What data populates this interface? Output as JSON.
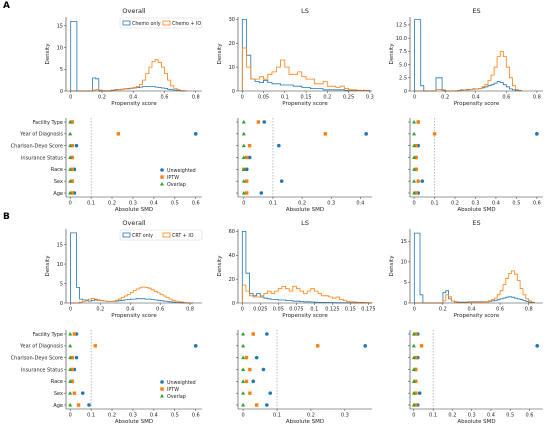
{
  "panels": [
    {
      "letter": "A",
      "hist_legend": [
        "Chemo only",
        "Chemo + IO"
      ]
    },
    {
      "letter": "B",
      "hist_legend": [
        "CRT only",
        "CRT + IO"
      ]
    }
  ],
  "columns": [
    "Overall",
    "LS",
    "ES"
  ],
  "labels": {
    "density": "Density",
    "propensity": "Propensity score",
    "smd": "Absolute SMD"
  },
  "smd_legend": [
    "Unweighted",
    "IPTW",
    "Overlap"
  ],
  "covariates": [
    "Facility Type",
    "Year of Diagnosis",
    "Charlson-Deyo Score",
    "Insurance Status",
    "Race",
    "Sex",
    "Age"
  ],
  "colors": {
    "blue": "#1f77b4",
    "orange": "#ff7f0e",
    "green": "#2ca02c"
  },
  "chart_data": [
    {
      "type": "histogram",
      "panel": "A",
      "column": "Overall",
      "x_ticks": [
        0.0,
        0.2,
        0.4,
        0.6,
        0.8
      ],
      "xlim": [
        -0.03,
        0.84
      ],
      "y_ticks": [
        0,
        5,
        10,
        15
      ],
      "ylim": [
        0,
        17
      ],
      "bin_start": 0.0,
      "bin_width": 0.02,
      "series": [
        {
          "name": "Chemo only",
          "color": "blue",
          "values": [
            16,
            16,
            0,
            0,
            0,
            0,
            0,
            3,
            2.8,
            0,
            0,
            0,
            0,
            0.2,
            0.3,
            0.3,
            0.4,
            0.5,
            0.5,
            0.6,
            0.7,
            0.8,
            0.9,
            1.0,
            1.0,
            1.0,
            1.0,
            0.9,
            0.8,
            0.7,
            0.6,
            0.4,
            0.3,
            0.2,
            0.1,
            0.05,
            0.02
          ]
        },
        {
          "name": "Chemo + IO",
          "color": "orange",
          "values": [
            0,
            0,
            0,
            0,
            0,
            0,
            0,
            0.2,
            0.3,
            0.2,
            0.1,
            0.1,
            0.1,
            0.1,
            0.2,
            0.3,
            0.4,
            0.5,
            0.6,
            0.7,
            0.8,
            1.0,
            1.5,
            2.5,
            4.0,
            5.5,
            6.8,
            7.2,
            6.6,
            5.5,
            4.0,
            2.5,
            1.2,
            0.6,
            0.3,
            0.1,
            0.05
          ]
        }
      ]
    },
    {
      "type": "histogram",
      "panel": "A",
      "column": "LS",
      "x_ticks": [
        0.0,
        0.05,
        0.1,
        0.15,
        0.2,
        0.25,
        0.3
      ],
      "xlim": [
        -0.01,
        0.305
      ],
      "y_ticks": [
        0,
        10,
        20,
        30
      ],
      "ylim": [
        0,
        31
      ],
      "bin_start": 0.0,
      "bin_width": 0.01,
      "series": [
        {
          "name": "Chemo only",
          "color": "blue",
          "values": [
            30,
            15,
            5,
            4,
            3.5,
            4.5,
            3.5,
            3,
            3,
            2.5,
            2.5,
            2.5,
            2,
            2,
            1.5,
            1.5,
            1,
            1,
            1,
            0.5,
            0.5,
            0.5,
            0.5,
            0.5,
            0.3,
            0.3,
            0.3,
            0.2,
            0.2,
            0.2
          ]
        },
        {
          "name": "Chemo + IO",
          "color": "orange",
          "values": [
            18,
            10,
            5,
            5,
            6,
            5,
            7,
            8,
            10,
            13,
            10,
            7,
            7,
            8,
            6,
            5,
            5,
            3,
            3,
            4,
            2,
            2,
            1.5,
            2,
            1,
            0.5,
            0.5,
            0.3,
            0.3,
            0.2
          ]
        }
      ]
    },
    {
      "type": "histogram",
      "panel": "A",
      "column": "ES",
      "x_ticks": [
        0.0,
        0.2,
        0.4,
        0.6,
        0.8
      ],
      "xlim": [
        -0.03,
        0.84
      ],
      "y_ticks": [
        0,
        2.5,
        5.0,
        7.5,
        10.0,
        12.5
      ],
      "ylim": [
        0,
        14
      ],
      "bin_start": 0.0,
      "bin_width": 0.02,
      "series": [
        {
          "name": "Chemo only",
          "color": "blue",
          "values": [
            13.5,
            13.5,
            1,
            0,
            0,
            0,
            0,
            2.5,
            2.5,
            0.2,
            0,
            0,
            0,
            0,
            0.1,
            0.2,
            0.2,
            0.3,
            0.3,
            0.4,
            0.4,
            0.5,
            0.6,
            0.8,
            1.0,
            1.2,
            1.5,
            1.8,
            1.6,
            1.2,
            0.8,
            0.4,
            0.2,
            0.1,
            0.05
          ]
        },
        {
          "name": "Chemo + IO",
          "color": "orange",
          "values": [
            0,
            0,
            0,
            0,
            0,
            0,
            0,
            0.3,
            0.3,
            0.1,
            0,
            0,
            0,
            0,
            0.1,
            0.1,
            0.2,
            0.2,
            0.3,
            0.3,
            0.4,
            0.5,
            0.8,
            1.2,
            2.0,
            3.0,
            4.5,
            6.5,
            7.5,
            6.5,
            4.5,
            2.5,
            1.0,
            0.3,
            0.1
          ]
        }
      ]
    },
    {
      "type": "scatter",
      "panel": "A",
      "column": "Overall",
      "x_ticks": [
        0.0,
        0.1,
        0.2,
        0.3,
        0.4,
        0.5,
        0.6
      ],
      "xlim": [
        -0.02,
        0.63
      ],
      "threshold": 0.1,
      "series": [
        {
          "name": "Unweighted",
          "marker": "circle",
          "color": "blue",
          "values": [
            0.01,
            0.6,
            0.03,
            0.01,
            0.02,
            0.01,
            0.02
          ]
        },
        {
          "name": "IPTW",
          "marker": "square",
          "color": "orange",
          "values": [
            0.01,
            0.23,
            0.01,
            0.01,
            0.01,
            0.01,
            0.01
          ]
        },
        {
          "name": "Overlap",
          "marker": "triangle",
          "color": "green",
          "values": [
            0.0,
            0.0,
            0.0,
            0.0,
            0.0,
            0.0,
            0.0
          ]
        }
      ]
    },
    {
      "type": "scatter",
      "panel": "A",
      "column": "LS",
      "x_ticks": [
        0.0,
        0.1,
        0.2,
        0.3,
        0.4
      ],
      "xlim": [
        -0.02,
        0.44
      ],
      "threshold": 0.1,
      "series": [
        {
          "name": "Unweighted",
          "marker": "circle",
          "color": "blue",
          "values": [
            0.07,
            0.42,
            0.12,
            0.02,
            0.01,
            0.13,
            0.06
          ]
        },
        {
          "name": "IPTW",
          "marker": "square",
          "color": "orange",
          "values": [
            0.05,
            0.28,
            0.02,
            0.01,
            0.0,
            0.01,
            0.01
          ]
        },
        {
          "name": "Overlap",
          "marker": "triangle",
          "color": "green",
          "values": [
            0.0,
            0.0,
            0.0,
            0.0,
            0.0,
            0.0,
            0.0
          ]
        }
      ]
    },
    {
      "type": "scatter",
      "panel": "A",
      "column": "ES",
      "x_ticks": [
        0.0,
        0.1,
        0.2,
        0.3,
        0.4,
        0.5,
        0.6
      ],
      "xlim": [
        -0.02,
        0.63
      ],
      "threshold": 0.1,
      "series": [
        {
          "name": "Unweighted",
          "marker": "circle",
          "color": "blue",
          "values": [
            0.02,
            0.6,
            0.02,
            0.01,
            0.01,
            0.04,
            0.02
          ]
        },
        {
          "name": "IPTW",
          "marker": "square",
          "color": "orange",
          "values": [
            0.02,
            0.1,
            0.01,
            0.01,
            0.01,
            0.02,
            0.01
          ]
        },
        {
          "name": "Overlap",
          "marker": "triangle",
          "color": "green",
          "values": [
            0.0,
            0.0,
            0.0,
            0.0,
            0.0,
            0.0,
            0.0
          ]
        }
      ]
    },
    {
      "type": "histogram",
      "panel": "B",
      "column": "Overall",
      "x_ticks": [
        0.0,
        0.2,
        0.4,
        0.6,
        0.8
      ],
      "xlim": [
        -0.03,
        0.88
      ],
      "y_ticks": [
        0,
        5,
        10,
        15
      ],
      "ylim": [
        0,
        19
      ],
      "bin_start": 0.0,
      "bin_width": 0.02,
      "series": [
        {
          "name": "CRT only",
          "color": "blue",
          "values": [
            18,
            18,
            4,
            1,
            0.8,
            0.6,
            0.5,
            0.7,
            0.8,
            0.7,
            0.6,
            0.5,
            0.4,
            0.4,
            0.4,
            0.5,
            0.6,
            0.7,
            0.8,
            0.9,
            1.0,
            1.0,
            1.1,
            1.1,
            1.1,
            1.0,
            1.0,
            0.9,
            0.8,
            0.7,
            0.6,
            0.5,
            0.4,
            0.3,
            0.2,
            0.1,
            0.1,
            0.05,
            0.02,
            0.01,
            0.01
          ]
        },
        {
          "name": "CRT + IO",
          "color": "orange",
          "values": [
            0,
            0,
            0,
            0.2,
            0.4,
            0.8,
            1.0,
            1.2,
            1.0,
            0.8,
            0.6,
            0.5,
            0.4,
            0.4,
            0.5,
            0.7,
            1.0,
            1.4,
            1.8,
            2.2,
            2.7,
            3.2,
            3.6,
            3.9,
            4.1,
            4.0,
            3.8,
            3.4,
            3.0,
            2.6,
            2.2,
            1.8,
            1.4,
            1.0,
            0.7,
            0.5,
            0.3,
            0.2,
            0.1,
            0.05,
            0.02
          ]
        }
      ]
    },
    {
      "type": "histogram",
      "panel": "B",
      "column": "LS",
      "x_ticks": [
        0.0,
        0.025,
        0.05,
        0.075,
        0.1,
        0.125,
        0.15,
        0.175
      ],
      "xlim": [
        -0.006,
        0.18
      ],
      "y_ticks": [
        0,
        20,
        40,
        60
      ],
      "ylim": [
        0,
        62
      ],
      "bin_start": 0.0,
      "bin_width": 0.005,
      "series": [
        {
          "name": "CRT only",
          "color": "blue",
          "values": [
            60,
            25,
            8,
            6,
            8,
            5,
            4,
            3.5,
            3,
            3,
            2.5,
            2.5,
            2,
            2,
            1.5,
            1.5,
            1.2,
            1,
            1,
            0.8,
            0.6,
            0.5,
            0.5,
            0.4,
            0.3,
            0.3,
            0.2,
            0.2,
            0.2,
            0.1,
            0.1,
            0.1,
            0.1,
            0.05,
            0.05,
            0.05
          ]
        },
        {
          "name": "CRT + IO",
          "color": "orange",
          "values": [
            15,
            10,
            6,
            5,
            5,
            6,
            8,
            10,
            8,
            10,
            12,
            14,
            12,
            10,
            14,
            12,
            10,
            8,
            10,
            12,
            10,
            8,
            6,
            6,
            5,
            4,
            5,
            3,
            2,
            1,
            1,
            0.8,
            0.5,
            0.5,
            0.3,
            0.2
          ]
        }
      ]
    },
    {
      "type": "histogram",
      "panel": "B",
      "column": "ES",
      "x_ticks": [
        0.0,
        0.2,
        0.4,
        0.6,
        0.8
      ],
      "xlim": [
        -0.03,
        0.9
      ],
      "y_ticks": [
        0,
        5,
        10,
        15
      ],
      "ylim": [
        0,
        18
      ],
      "bin_start": 0.0,
      "bin_width": 0.02,
      "series": [
        {
          "name": "CRT only",
          "color": "blue",
          "values": [
            17,
            17,
            2,
            0,
            0,
            0,
            0,
            0,
            0,
            0,
            2.5,
            3.0,
            1.0,
            0.5,
            0.3,
            0.2,
            0.2,
            0.2,
            0.2,
            0.3,
            0.3,
            0.3,
            0.3,
            0.3,
            0.3,
            0.3,
            0.4,
            0.5,
            0.6,
            0.8,
            1.0,
            1.2,
            1.4,
            1.5,
            1.4,
            1.2,
            1.0,
            0.8,
            0.6,
            0.4,
            0.2,
            0.1
          ]
        },
        {
          "name": "CRT + IO",
          "color": "orange",
          "values": [
            0,
            0,
            0,
            0,
            0,
            0,
            0,
            0,
            0,
            0,
            0.5,
            2.0,
            1.5,
            0.5,
            0.2,
            0.1,
            0.1,
            0.1,
            0.1,
            0.2,
            0.2,
            0.2,
            0.2,
            0.2,
            0.3,
            0.3,
            0.5,
            0.8,
            1.2,
            2.0,
            3.0,
            4.5,
            6.0,
            7.2,
            7.8,
            7.0,
            5.5,
            3.5,
            2.0,
            1.0,
            0.5,
            0.2
          ]
        }
      ]
    },
    {
      "type": "scatter",
      "panel": "B",
      "column": "Overall",
      "x_ticks": [
        0.0,
        0.1,
        0.2,
        0.3,
        0.4,
        0.5,
        0.6
      ],
      "xlim": [
        -0.02,
        0.63
      ],
      "threshold": 0.1,
      "series": [
        {
          "name": "Unweighted",
          "marker": "circle",
          "color": "blue",
          "values": [
            0.03,
            0.6,
            0.03,
            0.02,
            0.01,
            0.06,
            0.09
          ]
        },
        {
          "name": "IPTW",
          "marker": "square",
          "color": "orange",
          "values": [
            0.02,
            0.12,
            0.01,
            0.01,
            0.01,
            0.02,
            0.04
          ]
        },
        {
          "name": "Overlap",
          "marker": "triangle",
          "color": "green",
          "values": [
            0.0,
            0.0,
            0.0,
            0.0,
            0.0,
            0.0,
            0.0
          ]
        }
      ]
    },
    {
      "type": "scatter",
      "panel": "B",
      "column": "LS",
      "x_ticks": [
        0.0,
        0.1,
        0.2,
        0.3
      ],
      "xlim": [
        -0.015,
        0.38
      ],
      "threshold": 0.1,
      "series": [
        {
          "name": "Unweighted",
          "marker": "circle",
          "color": "blue",
          "values": [
            0.07,
            0.36,
            0.04,
            0.06,
            0.03,
            0.08,
            0.07
          ]
        },
        {
          "name": "IPTW",
          "marker": "square",
          "color": "orange",
          "values": [
            0.03,
            0.22,
            0.01,
            0.02,
            0.01,
            0.02,
            0.04
          ]
        },
        {
          "name": "Overlap",
          "marker": "triangle",
          "color": "green",
          "values": [
            0.0,
            0.0,
            0.0,
            0.0,
            0.0,
            0.0,
            0.0
          ]
        }
      ]
    },
    {
      "type": "scatter",
      "panel": "B",
      "column": "ES",
      "x_ticks": [
        0.0,
        0.1,
        0.2,
        0.3,
        0.4,
        0.5,
        0.6
      ],
      "xlim": [
        -0.02,
        0.67
      ],
      "threshold": 0.1,
      "series": [
        {
          "name": "Unweighted",
          "marker": "circle",
          "color": "blue",
          "values": [
            0.02,
            0.64,
            0.02,
            0.01,
            0.01,
            0.03,
            0.02
          ]
        },
        {
          "name": "IPTW",
          "marker": "square",
          "color": "orange",
          "values": [
            0.01,
            0.04,
            0.01,
            0.01,
            0.01,
            0.01,
            0.01
          ]
        },
        {
          "name": "Overlap",
          "marker": "triangle",
          "color": "green",
          "values": [
            0.0,
            0.0,
            0.0,
            0.0,
            0.0,
            0.0,
            0.0
          ]
        }
      ]
    }
  ]
}
